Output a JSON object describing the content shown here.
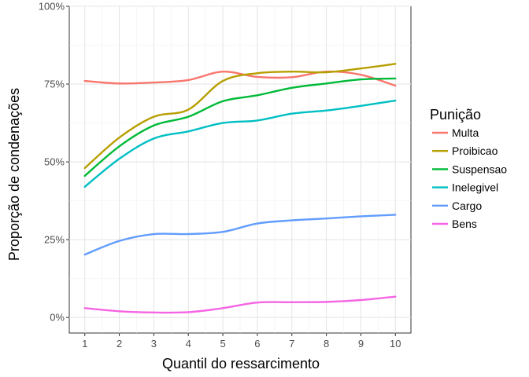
{
  "chart_data": {
    "type": "line",
    "title": "",
    "xlabel": "Quantil do ressarcimento",
    "ylabel": "Proporção de condenações",
    "x": [
      1,
      2,
      3,
      4,
      5,
      6,
      7,
      8,
      9,
      10
    ],
    "x_ticks": [
      "1",
      "2",
      "3",
      "4",
      "5",
      "6",
      "7",
      "8",
      "9",
      "10"
    ],
    "ylim": [
      0,
      1
    ],
    "xlim": [
      1,
      10
    ],
    "y_ticks": [
      {
        "value": 0,
        "label": "0%"
      },
      {
        "value": 0.25,
        "label": "25%"
      },
      {
        "value": 0.5,
        "label": "50%"
      },
      {
        "value": 0.75,
        "label": "75%"
      },
      {
        "value": 1,
        "label": "100%"
      }
    ],
    "grid": true,
    "legend": {
      "title": "Punição",
      "position": "right"
    },
    "series": [
      {
        "name": "Multa",
        "color": "#F8766D",
        "values": [
          0.76,
          0.752,
          0.755,
          0.763,
          0.79,
          0.773,
          0.772,
          0.79,
          0.78,
          0.745
        ]
      },
      {
        "name": "Proibicao",
        "color": "#B79F00",
        "values": [
          0.48,
          0.578,
          0.645,
          0.668,
          0.76,
          0.785,
          0.79,
          0.788,
          0.8,
          0.815
        ]
      },
      {
        "name": "Suspensao",
        "color": "#00BA38",
        "values": [
          0.455,
          0.55,
          0.617,
          0.645,
          0.695,
          0.714,
          0.738,
          0.752,
          0.765,
          0.768
        ]
      },
      {
        "name": "Inelegivel",
        "color": "#00BFC4",
        "values": [
          0.42,
          0.51,
          0.575,
          0.598,
          0.625,
          0.633,
          0.655,
          0.665,
          0.68,
          0.697
        ]
      },
      {
        "name": "Cargo",
        "color": "#619CFF",
        "values": [
          0.202,
          0.246,
          0.268,
          0.268,
          0.275,
          0.302,
          0.312,
          0.318,
          0.325,
          0.33
        ]
      },
      {
        "name": "Bens",
        "color": "#F564E3",
        "values": [
          0.03,
          0.02,
          0.016,
          0.017,
          0.03,
          0.048,
          0.049,
          0.05,
          0.056,
          0.067
        ]
      }
    ]
  }
}
